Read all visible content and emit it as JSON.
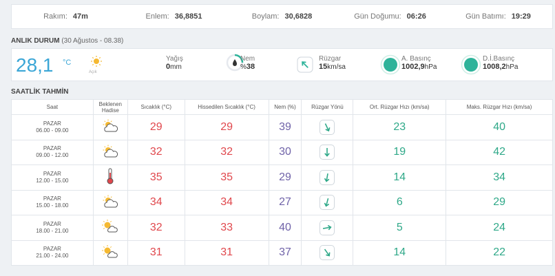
{
  "location": {
    "altitude_label": "Rakım:",
    "altitude_value": "47m",
    "latitude_label": "Enlem:",
    "latitude_value": "36,8851",
    "longitude_label": "Boylam:",
    "longitude_value": "30,6828",
    "sunrise_label": "Gün Doğumu:",
    "sunrise_value": "06:26",
    "sunset_label": "Gün Batımı:",
    "sunset_value": "19:29"
  },
  "current": {
    "title": "ANLIK DURUM",
    "subtitle": "(30 Ağustos - 08.38)",
    "temperature": "28,1",
    "temperature_unit": "°C",
    "condition_label": "Açık",
    "precip_label": "Yağış",
    "precip_value": "0",
    "precip_unit": "mm",
    "humidity_label": "Nem",
    "humidity_prefix": "%",
    "humidity_value": "38",
    "wind_label": "Rüzgar",
    "wind_value": "15",
    "wind_unit": "km/sa",
    "pressure_label": "A. Basınç",
    "pressure_value": "1002,9",
    "pressure_unit": "hPa",
    "sea_pressure_label": "D.İ.Basınç",
    "sea_pressure_value": "1008,2",
    "sea_pressure_unit": "hPa"
  },
  "hourly": {
    "title": "SAATLİK TAHMİN",
    "headers": {
      "time": "Saat",
      "event_line1": "Beklenen",
      "event_line2": "Hadise",
      "temp": "Sıcaklık (°C)",
      "feels": "Hissedilen Sıcaklık (°C)",
      "humidity": "Nem (%)",
      "wind_dir": "Rüzgar Yönü",
      "avg_wind": "Ort. Rüzgar Hızı (km/sa)",
      "max_wind": "Maks. Rüzgar Hızı (km/sa)"
    },
    "rows": [
      {
        "day": "PAZAR",
        "range": "06.00 - 09.00",
        "icon": "partly-cloudy-icon",
        "temp": "29",
        "feels": "29",
        "humidity": "39",
        "wind_deg": 155,
        "avg": "23",
        "max": "40"
      },
      {
        "day": "PAZAR",
        "range": "09.00 - 12.00",
        "icon": "partly-cloudy-icon",
        "temp": "32",
        "feels": "32",
        "humidity": "30",
        "wind_deg": 180,
        "avg": "19",
        "max": "42"
      },
      {
        "day": "PAZAR",
        "range": "12.00 - 15.00",
        "icon": "thermometer-icon",
        "temp": "35",
        "feels": "35",
        "humidity": "29",
        "wind_deg": 190,
        "avg": "14",
        "max": "34"
      },
      {
        "day": "PAZAR",
        "range": "15.00 - 18.00",
        "icon": "partly-cloudy-icon",
        "temp": "34",
        "feels": "34",
        "humidity": "27",
        "wind_deg": 195,
        "avg": "6",
        "max": "29"
      },
      {
        "day": "PAZAR",
        "range": "18.00 - 21.00",
        "icon": "sun-cloud-icon",
        "temp": "32",
        "feels": "33",
        "humidity": "40",
        "wind_deg": 80,
        "avg": "5",
        "max": "24"
      },
      {
        "day": "PAZAR",
        "range": "21.00 - 24.00",
        "icon": "sun-cloud-icon",
        "temp": "31",
        "feels": "31",
        "humidity": "37",
        "wind_deg": 145,
        "avg": "14",
        "max": "22"
      }
    ]
  },
  "colors": {
    "temp_blue": "#3ba6d6",
    "temp_red": "#e0474c",
    "humidity_purple": "#6f62a8",
    "wind_green": "#2ea888",
    "pressure_teal": "#2eb39a"
  }
}
